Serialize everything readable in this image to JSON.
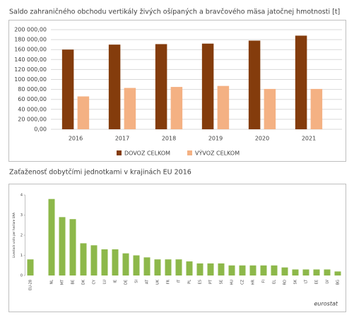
{
  "chart_data": [
    {
      "type": "bar",
      "title": "Saldo zahraničného obchodu vertikály živých ošípaných a bravčového mäsa jatočnej hmotnosti [t]",
      "categories": [
        "2016",
        "2017",
        "2018",
        "2019",
        "2020",
        "2021"
      ],
      "series": [
        {
          "name": "DOVOZ CELKOM",
          "color": "#843c0c",
          "values": [
            160000,
            170000,
            171000,
            172000,
            178000,
            188000
          ]
        },
        {
          "name": "VÝVOZ CELKOM",
          "color": "#f4b183",
          "values": [
            66000,
            83000,
            85000,
            87000,
            81000,
            81000
          ]
        }
      ],
      "ylim": [
        0,
        200000
      ],
      "yticks": [
        {
          "value": 0,
          "label": "0,00"
        },
        {
          "value": 20000,
          "label": "20 000,00"
        },
        {
          "value": 40000,
          "label": "40 000,00"
        },
        {
          "value": 60000,
          "label": "60 000,00"
        },
        {
          "value": 80000,
          "label": "80 000,00"
        },
        {
          "value": 100000,
          "label": "100 000,00"
        },
        {
          "value": 120000,
          "label": "120 000,00"
        },
        {
          "value": 140000,
          "label": "140 000,00"
        },
        {
          "value": 160000,
          "label": "160 000,00"
        },
        {
          "value": 180000,
          "label": "180 000,00"
        },
        {
          "value": 200000,
          "label": "200 000,00"
        }
      ],
      "grid": true,
      "legend": "bottom"
    },
    {
      "type": "bar",
      "title": "Zaťaženosť dobytčími jednotkami v krajinách EU 2016",
      "y_label": "Livestock units per hectare UAA",
      "categories": [
        "EU-28",
        null,
        "NL",
        "MT",
        "BE",
        "DK",
        "CY",
        "LU",
        "IE",
        "DE",
        "SI",
        "AT",
        "UK",
        "FR",
        "IT",
        "PL",
        "ES",
        "PT",
        "SE",
        "HU",
        "CZ",
        "HR",
        "FI",
        "EL",
        "RO",
        "SK",
        "LT",
        "EE",
        "LV",
        "BG"
      ],
      "values": [
        0.8,
        null,
        3.8,
        2.9,
        2.8,
        1.6,
        1.5,
        1.3,
        1.3,
        1.1,
        1.0,
        0.9,
        0.8,
        0.8,
        0.8,
        0.7,
        0.6,
        0.6,
        0.6,
        0.5,
        0.5,
        0.5,
        0.5,
        0.5,
        0.4,
        0.3,
        0.3,
        0.3,
        0.3,
        0.2
      ],
      "color": "#8db84a",
      "ylim": [
        0,
        4
      ],
      "yticks": [
        0,
        1,
        2,
        3,
        4
      ],
      "grid": false,
      "source": "eurostat"
    }
  ]
}
